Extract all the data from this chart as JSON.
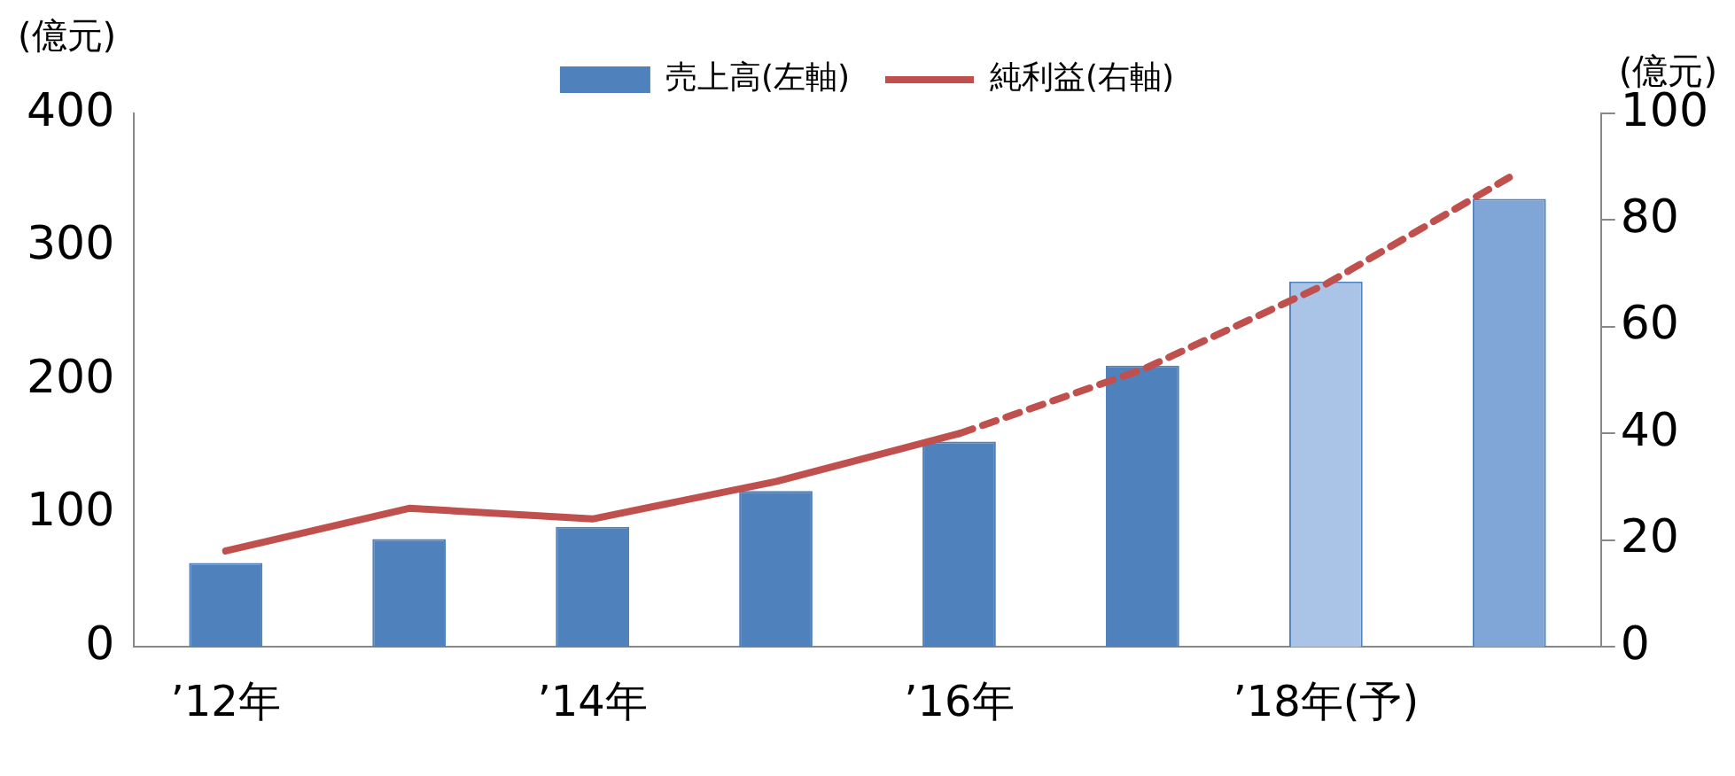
{
  "chart_data": {
    "type": "bar",
    "ylabel": "(億元)",
    "y2label": "(億元)",
    "categories": [
      "’12年",
      null,
      "’14年",
      null,
      "’16年",
      null,
      "’18年(予)",
      null
    ],
    "series": [
      {
        "name": "売上高(左軸)",
        "color": "#4f81bd",
        "colors": [
          "#4f81bd",
          "#4f81bd",
          "#4f81bd",
          "#4f81bd",
          "#4f81bd",
          "#4f81bd",
          "#a9c4e6",
          "#7fa6d6"
        ],
        "values": [
          63,
          81,
          90,
          117,
          154,
          211,
          274,
          336
        ]
      },
      {
        "name": "純利益(右軸)",
        "type": "line",
        "axis": "y2",
        "color": "#c0504d",
        "line_style": "solid",
        "values": [
          18,
          26,
          24,
          31,
          40,
          null,
          null,
          null
        ]
      },
      {
        "type": "line",
        "axis": "y2",
        "color": "#c0504d",
        "line_style": "dashed",
        "values": [
          null,
          null,
          null,
          null,
          40,
          52,
          68,
          88
        ]
      }
    ],
    "ylim": [
      0,
      400
    ],
    "yticks": [
      0,
      100,
      200,
      300,
      400
    ],
    "y2lim": [
      0,
      100
    ],
    "y2ticks": [
      0,
      20,
      40,
      60,
      80,
      100
    ],
    "grid": false,
    "legend": "top",
    "marker": "none"
  }
}
